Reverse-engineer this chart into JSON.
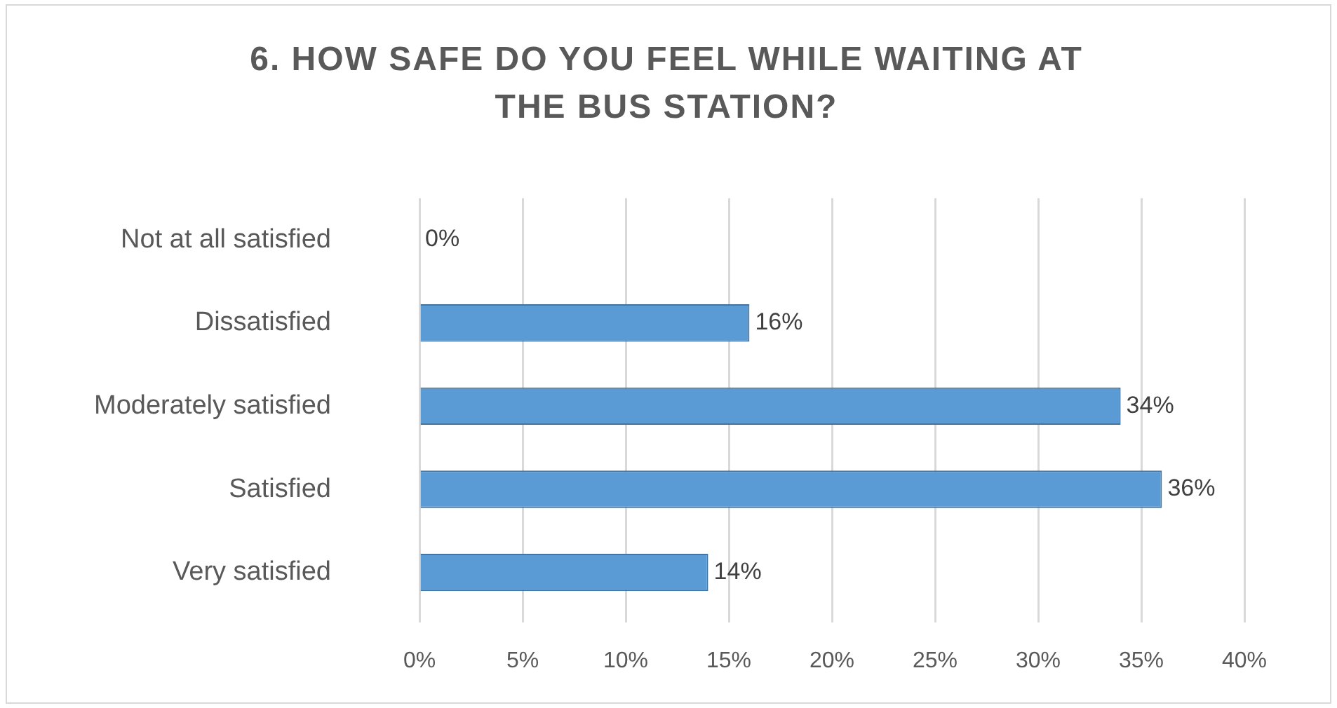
{
  "chart_data": {
    "type": "bar",
    "orientation": "horizontal",
    "title": "6. HOW SAFE DO YOU FEEL WHILE WAITING AT THE BUS STATION?",
    "categories": [
      "Not at all satisfied",
      "Dissatisfied",
      "Moderately satisfied",
      "Satisfied",
      "Very satisfied"
    ],
    "values": [
      0,
      16,
      34,
      36,
      14
    ],
    "color": "#5b9bd5",
    "value_labels": [
      "0%",
      "16%",
      "34%",
      "36%",
      "14%"
    ],
    "xlim": [
      0,
      40
    ],
    "xticks": [
      {
        "value": 0,
        "label": "0%"
      },
      {
        "value": 5,
        "label": "5%"
      },
      {
        "value": 10,
        "label": "10%"
      },
      {
        "value": 15,
        "label": "15%"
      },
      {
        "value": 20,
        "label": "20%"
      },
      {
        "value": 25,
        "label": "25%"
      },
      {
        "value": 30,
        "label": "30%"
      },
      {
        "value": 35,
        "label": "35%"
      },
      {
        "value": 40,
        "label": "40%"
      }
    ],
    "grid": "x",
    "legend": false
  }
}
